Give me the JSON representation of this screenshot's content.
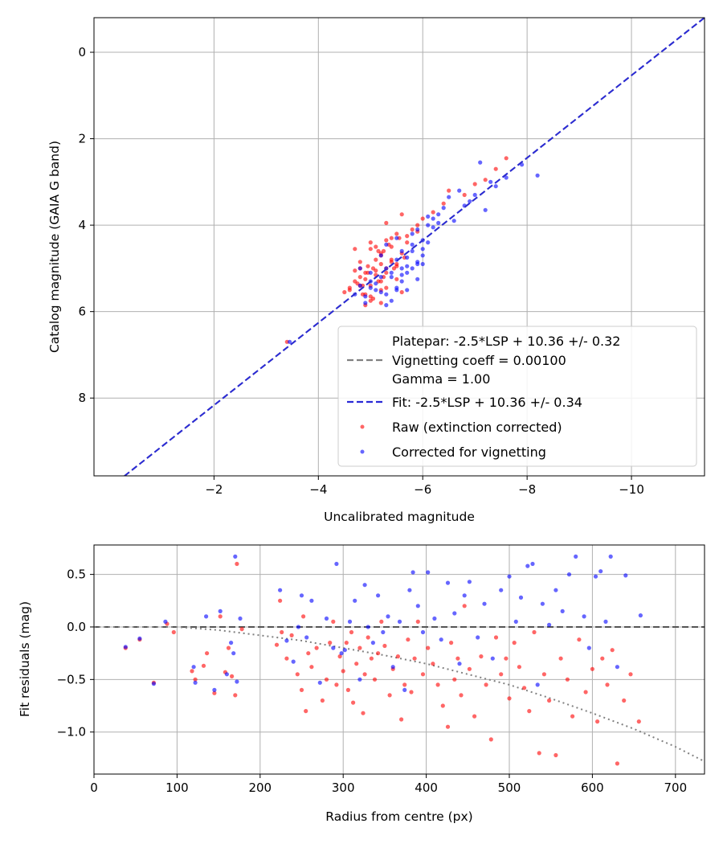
{
  "chart_data": [
    {
      "type": "scatter",
      "xlabel": "Uncalibrated magnitude",
      "ylabel": "Catalog magnitude (GAIA G band)",
      "xlim": [
        0.3,
        -11.4
      ],
      "ylim": [
        9.8,
        -0.8
      ],
      "x_ticks": [
        -2,
        -4,
        -6,
        -8,
        -10
      ],
      "y_ticks": [
        0,
        2,
        4,
        6,
        8
      ],
      "x_tick_labels": [
        "−2",
        "−4",
        "−6",
        "−8",
        "−10"
      ],
      "y_tick_labels": [
        "0",
        "2",
        "4",
        "6",
        "8"
      ],
      "grid": true,
      "legend_position": "lower-right",
      "legend": {
        "platepar": "Platepar: -2.5*LSP + 10.36 +/- 0.32",
        "vignetting": "Vignetting coeff = 0.00100",
        "gamma": "Gamma = 1.00",
        "fit": "Fit: -2.5*LSP + 10.36 +/- 0.34",
        "raw": "Raw (extinction corrected)",
        "corrected": "Corrected for vignetting"
      },
      "lines": [
        {
          "name": "Platepar: -2.5*LSP + 10.36 +/- 0.32",
          "color": "#808080",
          "dash": "dashed",
          "x": [
            0.3,
            -11.4
          ],
          "y": [
            10.36,
            -0.8
          ]
        },
        {
          "name": "Fit: -2.5*LSP + 10.36 +/- 0.34",
          "color": "#2a2ad6",
          "dash": "dashed",
          "x": [
            0.3,
            -11.4
          ],
          "y": [
            10.36,
            -0.8
          ]
        }
      ],
      "series": [
        {
          "name": "Raw (extinction corrected)",
          "color": "#ff0000",
          "x": [
            -3.4,
            -4.5,
            -4.6,
            -4.7,
            -4.8,
            -4.85,
            -4.9,
            -4.95,
            -5.0,
            -5.05,
            -5.1,
            -5.15,
            -5.2,
            -5.25,
            -5.3,
            -4.6,
            -4.75,
            -4.8,
            -4.9,
            -5.0,
            -5.1,
            -5.2,
            -5.3,
            -5.4,
            -5.5,
            -4.7,
            -4.8,
            -4.9,
            -5.0,
            -5.1,
            -5.2,
            -5.3,
            -5.4,
            -5.6,
            -5.7,
            -4.85,
            -4.95,
            -5.05,
            -5.15,
            -5.25,
            -5.35,
            -5.45,
            -5.55,
            -5.65,
            -5.8,
            -5.0,
            -5.1,
            -5.2,
            -5.3,
            -5.4,
            -5.5,
            -5.6,
            -5.7,
            -5.9,
            -6.0,
            -5.2,
            -5.3,
            -5.4,
            -5.5,
            -5.6,
            -5.9,
            -6.2,
            -6.4,
            -6.5,
            -6.8,
            -7.0,
            -7.2,
            -7.4,
            -7.6,
            -5.5,
            -5.2,
            -4.9,
            -4.7,
            -4.8,
            -5.0
          ],
          "y": [
            6.7,
            5.55,
            5.45,
            5.3,
            5.2,
            5.6,
            5.1,
            4.95,
            5.4,
            5.0,
            4.8,
            5.3,
            4.9,
            4.6,
            5.0,
            5.5,
            5.35,
            4.85,
            5.25,
            5.65,
            5.05,
            4.7,
            5.45,
            4.5,
            4.95,
            4.55,
            5.0,
            5.6,
            4.4,
            5.15,
            5.5,
            4.35,
            4.8,
            4.65,
            4.25,
            5.4,
            5.1,
            5.7,
            4.6,
            5.2,
            4.45,
            5.0,
            4.3,
            4.75,
            4.1,
            5.75,
            4.5,
            5.3,
            3.95,
            4.85,
            4.2,
            5.55,
            4.4,
            4.0,
            3.85,
            4.65,
            5.1,
            4.3,
            4.9,
            3.75,
            4.15,
            3.7,
            3.5,
            3.2,
            3.3,
            3.05,
            2.95,
            2.7,
            2.45,
            5.25,
            5.8,
            5.85,
            5.05,
            5.4,
            4.55
          ]
        },
        {
          "name": "Corrected for vignetting",
          "color": "#0000ff",
          "x": [
            -3.45,
            -4.7,
            -4.8,
            -4.9,
            -5.0,
            -5.1,
            -5.2,
            -5.3,
            -5.4,
            -5.5,
            -5.6,
            -5.7,
            -5.8,
            -5.9,
            -6.0,
            -4.9,
            -5.0,
            -5.1,
            -5.2,
            -5.3,
            -5.4,
            -5.5,
            -5.6,
            -5.7,
            -5.8,
            -5.9,
            -6.0,
            -6.1,
            -5.2,
            -5.3,
            -5.4,
            -5.5,
            -5.6,
            -5.7,
            -5.8,
            -5.9,
            -6.0,
            -6.1,
            -6.2,
            -6.3,
            -5.5,
            -5.6,
            -5.8,
            -6.0,
            -6.2,
            -6.4,
            -6.6,
            -6.8,
            -7.0,
            -7.2,
            -7.4,
            -7.6,
            -7.9,
            -8.2,
            -5.7,
            -5.9,
            -6.1,
            -6.5,
            -6.9,
            -7.3,
            -7.1,
            -6.7,
            -6.3,
            -5.3,
            -5.0,
            -4.8
          ],
          "y": [
            6.7,
            5.6,
            5.4,
            5.65,
            5.3,
            5.5,
            5.2,
            5.6,
            5.1,
            5.45,
            5.3,
            5.5,
            5.0,
            5.25,
            4.9,
            5.8,
            5.1,
            5.35,
            4.7,
            5.0,
            5.75,
            4.8,
            5.15,
            4.95,
            4.6,
            4.85,
            4.55,
            4.4,
            5.55,
            4.45,
            5.2,
            4.3,
            5.0,
            4.75,
            4.2,
            4.9,
            4.35,
            4.0,
            3.85,
            3.75,
            5.5,
            4.6,
            4.45,
            4.7,
            4.05,
            3.6,
            3.9,
            3.55,
            3.3,
            3.65,
            3.1,
            2.9,
            2.6,
            2.85,
            5.1,
            4.1,
            3.8,
            3.35,
            3.45,
            3.0,
            2.55,
            3.2,
            3.95,
            5.85,
            5.45,
            5.0
          ]
        }
      ]
    },
    {
      "type": "scatter",
      "xlabel": "Radius from centre (px)",
      "ylabel": "Fit residuals (mag)",
      "xlim": [
        0,
        735
      ],
      "ylim": [
        -1.4,
        0.78
      ],
      "x_ticks": [
        0,
        100,
        200,
        300,
        400,
        500,
        600,
        700
      ],
      "y_ticks": [
        0.5,
        0.0,
        -0.5,
        -1.0
      ],
      "x_tick_labels": [
        "0",
        "100",
        "200",
        "300",
        "400",
        "500",
        "600",
        "700"
      ],
      "y_tick_labels": [
        "0.5",
        "0.0",
        "−0.5",
        "−1.0"
      ],
      "grid": true,
      "lines": [
        {
          "name": "zero",
          "color": "#555555",
          "dash": "dashed",
          "x": [
            0,
            735
          ],
          "y": [
            0.0,
            0.0
          ]
        },
        {
          "name": "vignetting model",
          "color": "#808080",
          "dash": "dotted",
          "x": [
            0,
            50,
            100,
            150,
            200,
            250,
            300,
            350,
            400,
            450,
            500,
            550,
            600,
            650,
            700,
            735
          ],
          "y": [
            0,
            0,
            0,
            -0.03,
            -0.08,
            -0.13,
            -0.2,
            -0.27,
            -0.35,
            -0.45,
            -0.55,
            -0.68,
            -0.82,
            -0.97,
            -1.14,
            -1.28
          ]
        }
      ],
      "series": [
        {
          "name": "Raw (extinction corrected)",
          "color": "#ff0000",
          "x": [
            38,
            55,
            72,
            88,
            96,
            118,
            122,
            132,
            136,
            145,
            152,
            158,
            162,
            166,
            170,
            172,
            178,
            220,
            224,
            226,
            232,
            238,
            245,
            250,
            252,
            255,
            258,
            262,
            268,
            275,
            280,
            284,
            288,
            292,
            296,
            300,
            304,
            306,
            310,
            312,
            316,
            320,
            324,
            326,
            330,
            334,
            338,
            342,
            346,
            350,
            356,
            360,
            366,
            370,
            374,
            378,
            382,
            386,
            390,
            396,
            402,
            408,
            414,
            420,
            426,
            430,
            434,
            438,
            442,
            446,
            452,
            458,
            466,
            472,
            478,
            484,
            490,
            496,
            500,
            506,
            512,
            518,
            524,
            530,
            536,
            542,
            548,
            556,
            562,
            570,
            576,
            584,
            592,
            600,
            606,
            612,
            618,
            624,
            630,
            638,
            646,
            656
          ],
          "y": [
            -0.2,
            -0.12,
            -0.53,
            0.03,
            -0.05,
            -0.42,
            -0.5,
            -0.37,
            -0.25,
            -0.63,
            0.1,
            -0.43,
            -0.2,
            -0.47,
            -0.65,
            0.6,
            -0.02,
            -0.17,
            0.25,
            -0.05,
            -0.3,
            -0.08,
            -0.45,
            -0.6,
            0.1,
            -0.8,
            -0.25,
            -0.38,
            -0.2,
            -0.7,
            -0.5,
            -0.15,
            0.05,
            -0.55,
            -0.28,
            -0.42,
            -0.15,
            -0.6,
            -0.05,
            -0.72,
            -0.35,
            -0.2,
            -0.82,
            -0.45,
            -0.1,
            -0.3,
            -0.5,
            -0.25,
            0.05,
            -0.18,
            -0.65,
            -0.4,
            -0.28,
            -0.88,
            -0.55,
            -0.12,
            -0.62,
            -0.3,
            0.05,
            -0.45,
            -0.2,
            -0.35,
            -0.55,
            -0.75,
            -0.95,
            -0.15,
            -0.5,
            -0.3,
            -0.65,
            0.2,
            -0.4,
            -0.85,
            -0.28,
            -0.55,
            -1.07,
            -0.1,
            -0.45,
            -0.3,
            -0.68,
            -0.15,
            -0.38,
            -0.58,
            -0.8,
            -0.05,
            -1.2,
            -0.45,
            -0.7,
            -1.22,
            -0.3,
            -0.5,
            -0.85,
            -0.12,
            -0.62,
            -0.4,
            -0.9,
            -0.3,
            -0.55,
            -0.22,
            -1.3,
            -0.7,
            -0.45,
            -0.9
          ]
        },
        {
          "name": "Corrected for vignetting",
          "color": "#0000ff",
          "x": [
            38,
            55,
            72,
            86,
            120,
            122,
            135,
            145,
            152,
            160,
            165,
            168,
            170,
            172,
            176,
            224,
            232,
            240,
            246,
            250,
            256,
            262,
            272,
            280,
            288,
            292,
            298,
            302,
            308,
            314,
            320,
            326,
            330,
            336,
            342,
            348,
            354,
            360,
            368,
            374,
            380,
            384,
            390,
            396,
            402,
            410,
            418,
            426,
            434,
            440,
            446,
            452,
            462,
            470,
            480,
            490,
            500,
            508,
            514,
            522,
            528,
            534,
            540,
            548,
            556,
            564,
            572,
            580,
            590,
            596,
            604,
            610,
            616,
            622,
            630,
            640,
            658
          ],
          "y": [
            -0.19,
            -0.11,
            -0.54,
            0.05,
            -0.38,
            -0.53,
            0.1,
            -0.6,
            0.15,
            -0.45,
            -0.15,
            -0.25,
            0.67,
            -0.52,
            0.08,
            0.35,
            -0.13,
            -0.33,
            0.0,
            0.3,
            -0.1,
            0.25,
            -0.53,
            0.08,
            -0.2,
            0.6,
            -0.25,
            -0.22,
            0.05,
            0.25,
            -0.5,
            0.4,
            0.0,
            -0.15,
            0.3,
            -0.05,
            0.1,
            -0.38,
            0.05,
            -0.6,
            0.35,
            0.52,
            0.2,
            -0.05,
            0.52,
            0.08,
            -0.12,
            0.42,
            0.13,
            -0.35,
            0.3,
            0.43,
            -0.1,
            0.22,
            -0.3,
            0.35,
            0.48,
            0.05,
            0.28,
            0.58,
            0.6,
            -0.55,
            0.22,
            0.02,
            0.35,
            0.15,
            0.5,
            0.67,
            0.1,
            -0.2,
            0.48,
            0.53,
            0.05,
            0.67,
            -0.38,
            0.49,
            0.11
          ]
        }
      ]
    }
  ]
}
